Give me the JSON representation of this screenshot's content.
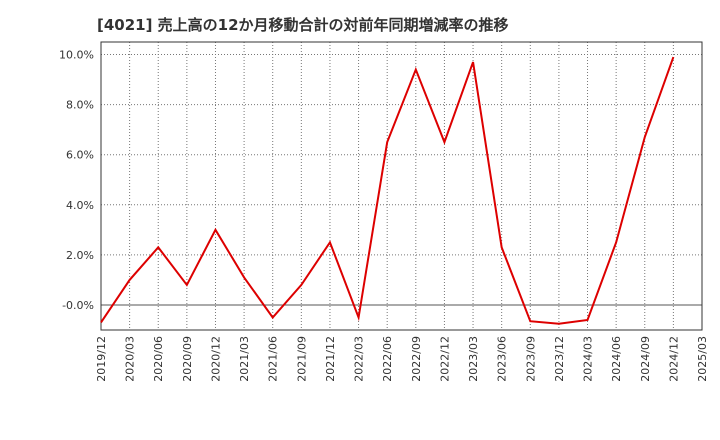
{
  "chart_data": {
    "type": "line",
    "title": "[4021]  売上高の12か月移動合計の対前年同期増減率の推移",
    "xlabel": "",
    "ylabel": "",
    "x": [
      "2019/12",
      "2020/03",
      "2020/06",
      "2020/09",
      "2020/12",
      "2021/03",
      "2021/06",
      "2021/09",
      "2021/12",
      "2022/03",
      "2022/06",
      "2022/09",
      "2022/12",
      "2023/03",
      "2023/06",
      "2023/09",
      "2023/12",
      "2024/03",
      "2024/06",
      "2024/09",
      "2024/12",
      "2025/03"
    ],
    "series": [
      {
        "color": "#dd0000",
        "values": [
          -0.7,
          1.0,
          2.3,
          0.8,
          3.0,
          1.1,
          -0.5,
          0.8,
          2.5,
          -0.5,
          6.5,
          9.4,
          6.5,
          9.7,
          2.3,
          -0.65,
          -0.75,
          -0.6,
          2.5,
          6.7,
          9.9,
          null
        ]
      }
    ],
    "ylim": [
      -1.0,
      10.5
    ],
    "yticks": [
      "-0.0%",
      "2.0%",
      "4.0%",
      "6.0%",
      "8.0%",
      "10.0%"
    ],
    "ytick_values": [
      0,
      2,
      4,
      6,
      8,
      10
    ],
    "grid": true
  }
}
